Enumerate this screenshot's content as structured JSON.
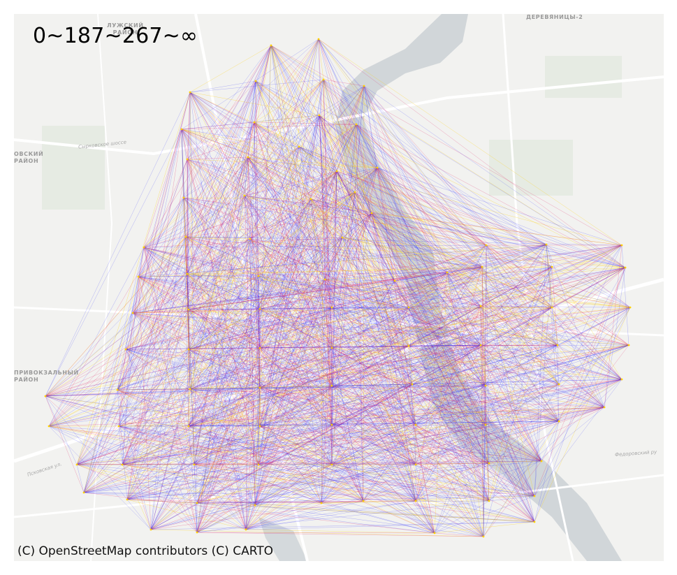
{
  "title": "0~187~267~∞",
  "attribution": "(C) OpenStreetMap contributors (C) CARTO",
  "map_labels": {
    "luzhsky_district": "ЛУЖСКИЙ\nРАЙОН",
    "derevyanitsy": "ДЕРЕВЯНИЦЫ-2",
    "pskovsky_district": "ОВСКИЙ\nРАЙОН",
    "privokzalny_district": "ПРИВОКЗАЛЬНЫЙ\nРАЙОН",
    "syrkovskoe_road": "Сырковское шоссе",
    "fedorovsky_road": "Федоровский ру",
    "pskovskaya_street": "Псковская ул."
  },
  "colors": {
    "land": "#f2f2f0",
    "park": "#e6ebe3",
    "water": "#c8ced3",
    "road": "#ffffff",
    "edge_low": "#2020ff",
    "edge_mid": "#e0105a",
    "edge_high": "#ffd000"
  },
  "legend": {
    "bins": [
      "0",
      "187",
      "267",
      "∞"
    ],
    "classes": [
      "low",
      "mid",
      "high"
    ]
  }
}
